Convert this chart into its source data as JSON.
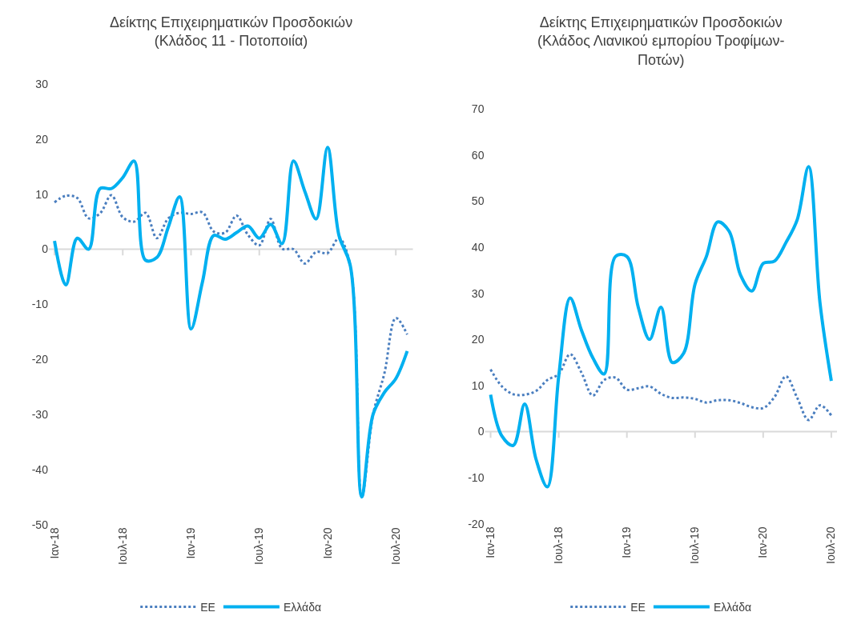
{
  "chart_data": [
    {
      "type": "line",
      "title": "Δείκτης Επιχειρηματικών Προσδοκιών\n(Κλάδος 11 - Ποτοποιία)",
      "categories": [
        "Ιαν-18",
        null,
        null,
        null,
        null,
        null,
        "Ιουλ-18",
        null,
        null,
        null,
        null,
        null,
        "Ιαν-19",
        null,
        null,
        null,
        null,
        null,
        "Ιουλ-19",
        null,
        null,
        null,
        null,
        null,
        "Ιαν-20",
        null,
        null,
        null,
        null,
        null,
        "Ιουλ-20",
        null
      ],
      "series": [
        {
          "name": "ΕΕ",
          "color": "#4a7ebf",
          "line_style": "dotted",
          "values": [
            8.5,
            9.7,
            9.3,
            5.6,
            6.5,
            9.8,
            5.8,
            5,
            6.6,
            2,
            5.6,
            6.6,
            6.4,
            6.7,
            3.2,
            3,
            6.1,
            2.6,
            0.7,
            5.5,
            0.1,
            0,
            -2.6,
            -0.5,
            -0.7,
            2,
            -3,
            -45,
            -30,
            -22.5,
            -12.5,
            -15.5
          ]
        },
        {
          "name": "Ελλάδα",
          "color": "#00b0f0",
          "line_style": "solid",
          "values": [
            1.5,
            -6.5,
            2,
            0,
            11,
            11,
            13,
            16,
            -2,
            -1.5,
            4,
            9.5,
            -14.5,
            -6,
            2.5,
            1.8,
            3,
            4.2,
            2,
            4.5,
            1,
            16,
            10.5,
            5.5,
            18.5,
            2.5,
            -3,
            -45,
            -30,
            -26,
            -23.5,
            -18.5
          ]
        }
      ],
      "ylim": [
        -50,
        30
      ],
      "yticks": [
        -50,
        -40,
        -30,
        -20,
        -10,
        0,
        10,
        20,
        30
      ],
      "legend": "bottom",
      "marker": "none"
    },
    {
      "type": "line",
      "title": "Δείκτης Επιχειρηματικών Προσδοκιών\n(Κλάδος Λιανικού εμπορίου Τροφίμων-\nΠοτών)",
      "categories": [
        "Ιαν-18",
        null,
        null,
        null,
        null,
        null,
        "Ιουλ-18",
        null,
        null,
        null,
        null,
        null,
        "Ιαν-19",
        null,
        null,
        null,
        null,
        null,
        "Ιουλ-19",
        null,
        null,
        null,
        null,
        null,
        "Ιαν-20",
        null,
        null,
        null,
        null,
        null,
        "Ιουλ-20"
      ],
      "series": [
        {
          "name": "ΕΕ",
          "color": "#4a7ebf",
          "line_style": "dotted",
          "values": [
            13.5,
            9.8,
            8.1,
            8,
            8.8,
            11.2,
            12.5,
            16.8,
            12.8,
            7.8,
            11.2,
            11.7,
            9.1,
            9.4,
            9.8,
            8.2,
            7.3,
            7.4,
            7.1,
            6.3,
            6.8,
            6.8,
            6.2,
            5.3,
            5.1,
            7.5,
            12,
            7.3,
            2.5,
            5.7,
            3.5
          ]
        },
        {
          "name": "Ελλάδα",
          "color": "#00b0f0",
          "line_style": "solid",
          "values": [
            8,
            -1,
            -3,
            6,
            -6,
            -12,
            12,
            29,
            22,
            16,
            12.5,
            38,
            38,
            27,
            20,
            27,
            15,
            17,
            32,
            38,
            45.5,
            43.5,
            34,
            30.5,
            36.5,
            37,
            41,
            46,
            57.5,
            28,
            11
          ]
        }
      ],
      "ylim": [
        -20,
        70
      ],
      "yticks": [
        -20,
        -10,
        0,
        10,
        20,
        30,
        40,
        50,
        60,
        70
      ],
      "legend": "bottom",
      "marker": "none"
    }
  ]
}
